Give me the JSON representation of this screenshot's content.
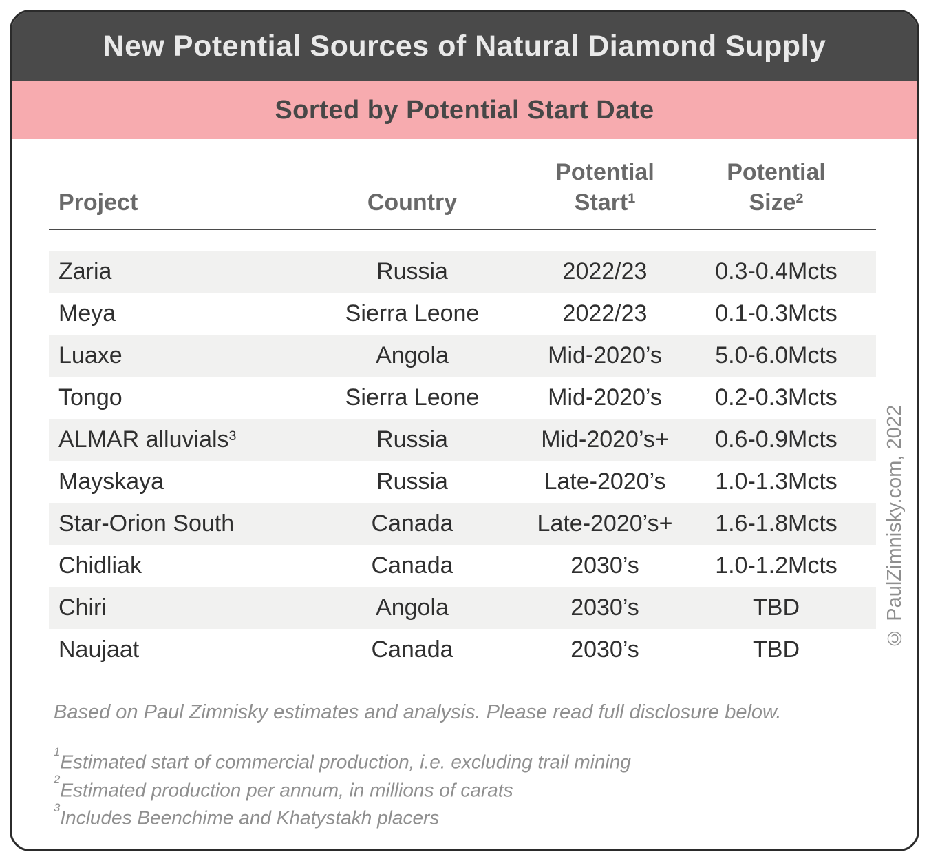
{
  "chart_data": {
    "type": "table",
    "title": "New Potential Sources of Natural Diamond Supply",
    "subtitle": "Sorted by Potential Start Date",
    "columns": [
      {
        "label": "Project",
        "lines": [
          "Project"
        ],
        "sup": "",
        "align": "left"
      },
      {
        "label": "Country",
        "lines": [
          "Country"
        ],
        "sup": "",
        "align": "center"
      },
      {
        "label": "Potential Start",
        "lines": [
          "Potential",
          "Start"
        ],
        "sup": "1",
        "align": "center"
      },
      {
        "label": "Potential Size",
        "lines": [
          "Potential",
          "Size"
        ],
        "sup": "2",
        "align": "center"
      }
    ],
    "rows": [
      {
        "project": "Zaria",
        "project_sup": "",
        "country": "Russia",
        "potential_start": "2022/23",
        "potential_size": "0.3-0.4Mcts"
      },
      {
        "project": "Meya",
        "project_sup": "",
        "country": "Sierra Leone",
        "potential_start": "2022/23",
        "potential_size": "0.1-0.3Mcts"
      },
      {
        "project": "Luaxe",
        "project_sup": "",
        "country": "Angola",
        "potential_start": "Mid-2020’s",
        "potential_size": "5.0-6.0Mcts"
      },
      {
        "project": "Tongo",
        "project_sup": "",
        "country": "Sierra Leone",
        "potential_start": "Mid-2020’s",
        "potential_size": "0.2-0.3Mcts"
      },
      {
        "project": "ALMAR alluvials",
        "project_sup": "3",
        "country": "Russia",
        "potential_start": "Mid-2020’s+",
        "potential_size": "0.6-0.9Mcts"
      },
      {
        "project": "Mayskaya",
        "project_sup": "",
        "country": "Russia",
        "potential_start": "Late-2020’s",
        "potential_size": "1.0-1.3Mcts"
      },
      {
        "project": "Star-Orion South",
        "project_sup": "",
        "country": "Canada",
        "potential_start": "Late-2020’s+",
        "potential_size": "1.6-1.8Mcts"
      },
      {
        "project": "Chidliak",
        "project_sup": "",
        "country": "Canada",
        "potential_start": "2030’s",
        "potential_size": "1.0-1.2Mcts"
      },
      {
        "project": "Chiri",
        "project_sup": "",
        "country": "Angola",
        "potential_start": "2030’s",
        "potential_size": "TBD"
      },
      {
        "project": "Naujaat",
        "project_sup": "",
        "country": "Canada",
        "potential_start": "2030’s",
        "potential_size": "TBD"
      }
    ],
    "striped_rows": "odd rows shaded (1st, 3rd, 5th, 7th, 9th)",
    "legend_position": "none",
    "grid": false
  },
  "notes": {
    "disclosure": "Based on Paul Zimnisky estimates and analysis. Please read full disclosure below.",
    "footnotes": [
      {
        "sup": "1",
        "text": "Estimated start of commercial production, i.e. excluding trail mining"
      },
      {
        "sup": "2",
        "text": "Estimated production per annum, in millions of carats"
      },
      {
        "sup": "3",
        "text": "Includes Beenchime and Khatystakh placers"
      }
    ]
  },
  "copyright": "© PaulZimnisky.com, 2022",
  "colors": {
    "header_bg": "#4a4a4a",
    "header_text": "#e9e9e9",
    "subtitle_bg": "#f7abaf",
    "subtitle_text": "#474747",
    "stripe_bg": "#f1f1f0",
    "body_text": "#2f2f2f",
    "column_header_text": "#696969",
    "note_text": "#8f8f8f"
  }
}
